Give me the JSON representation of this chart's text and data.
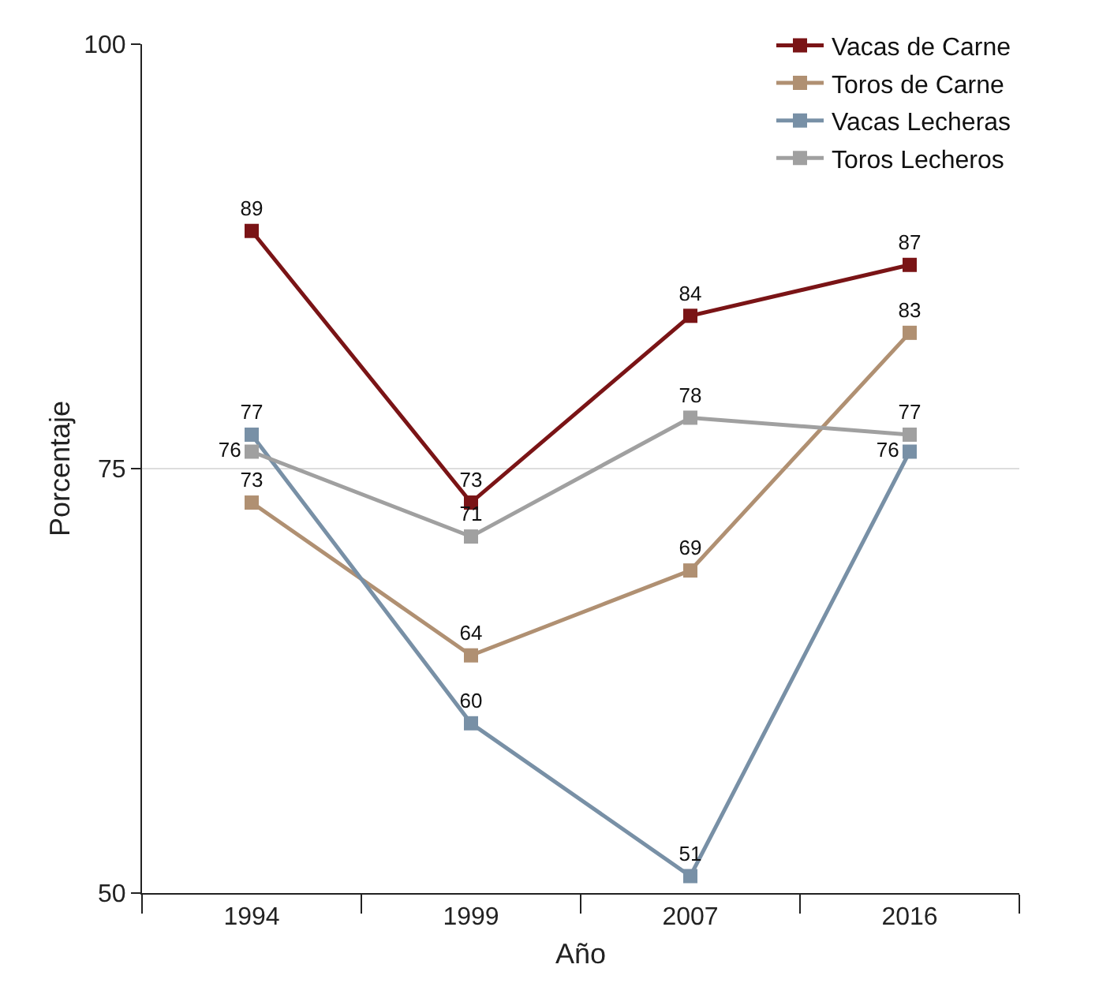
{
  "chart_data": {
    "type": "line",
    "xlabel": "Año",
    "ylabel": "Porcentaje",
    "categories": [
      "1994",
      "1999",
      "2007",
      "2016"
    ],
    "series": [
      {
        "name": "Vacas de Carne",
        "color": "#7a1416",
        "values": [
          89,
          73,
          84,
          87
        ]
      },
      {
        "name": "Toros de Carne",
        "color": "#b09072",
        "values": [
          73,
          64,
          69,
          83
        ]
      },
      {
        "name": "Vacas Lecheras",
        "color": "#7890a6",
        "values": [
          77,
          60,
          51,
          76
        ]
      },
      {
        "name": "Toros Lecheros",
        "color": "#a0a0a0",
        "values": [
          76,
          71,
          78,
          77
        ]
      }
    ],
    "ylim": [
      50,
      100
    ],
    "yticks": [
      50,
      75,
      100
    ],
    "grid": "y",
    "legend": "top right",
    "marker": "square",
    "line_style": "solid",
    "data_labels": true
  }
}
